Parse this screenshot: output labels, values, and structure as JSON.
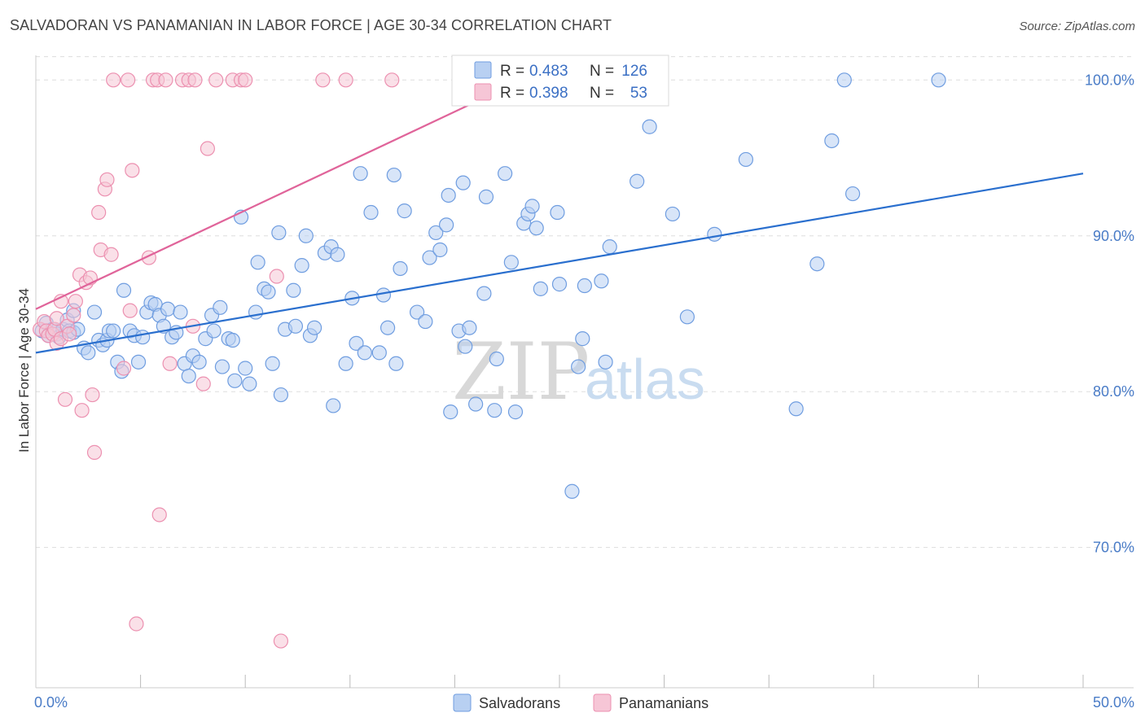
{
  "title": "SALVADORAN VS PANAMANIAN IN LABOR FORCE | AGE 30-34 CORRELATION CHART",
  "source": "Source: ZipAtlas.com",
  "watermark": {
    "zip": "ZIP",
    "atlas": "atlas"
  },
  "colors": {
    "salvadoran_fill": "#b8d0f2",
    "salvadoran_stroke": "#6f9de0",
    "salvadoran_line": "#2a6fce",
    "panamanian_fill": "#f6c6d6",
    "panamanian_stroke": "#ec90b0",
    "panamanian_line": "#e0649a",
    "grid": "#dddddd",
    "tick_text": "#4a7cc7"
  },
  "legend": {
    "rows": [
      {
        "r_label": "R =",
        "r_value": "0.483",
        "n_label": "N =",
        "n_value": "126"
      },
      {
        "r_label": "R =",
        "r_value": "0.398",
        "n_label": "N =",
        "n_value": "53"
      }
    ]
  },
  "bottom_legend": [
    "Salvadorans",
    "Panamanians"
  ],
  "chart_data": {
    "type": "scatter",
    "xlabel": "",
    "ylabel": "In Labor Force | Age 30-34",
    "xlim": [
      0,
      50
    ],
    "ylim": [
      61,
      102
    ],
    "x_tick_labels": [
      "0.0%",
      "50.0%"
    ],
    "y_ticks": [
      70,
      80,
      90,
      100
    ],
    "y_tick_labels": [
      "70.0%",
      "80.0%",
      "90.0%",
      "100.0%"
    ],
    "grid": true,
    "legend_position": "top-center",
    "series": [
      {
        "name": "Salvadorans",
        "r": 0.483,
        "n": 126,
        "trend": {
          "x": [
            0.0,
            50.0
          ],
          "y": [
            82.5,
            94.0
          ]
        },
        "points": [
          [
            0.3,
            83.9
          ],
          [
            0.5,
            84.4
          ],
          [
            0.6,
            83.6
          ],
          [
            0.8,
            84.0
          ],
          [
            1.0,
            83.7
          ],
          [
            1.1,
            83.5
          ],
          [
            1.3,
            84.0
          ],
          [
            1.5,
            84.6
          ],
          [
            1.6,
            83.9
          ],
          [
            1.8,
            83.8
          ],
          [
            1.8,
            85.2
          ],
          [
            2.0,
            84.0
          ],
          [
            2.3,
            82.8
          ],
          [
            2.5,
            82.5
          ],
          [
            2.8,
            85.1
          ],
          [
            3.0,
            83.3
          ],
          [
            3.2,
            83.0
          ],
          [
            3.4,
            83.3
          ],
          [
            3.5,
            83.9
          ],
          [
            3.7,
            83.9
          ],
          [
            3.9,
            81.9
          ],
          [
            4.1,
            81.3
          ],
          [
            4.2,
            86.5
          ],
          [
            4.5,
            83.9
          ],
          [
            4.7,
            83.6
          ],
          [
            4.9,
            81.9
          ],
          [
            5.1,
            83.5
          ],
          [
            5.3,
            85.1
          ],
          [
            5.5,
            85.7
          ],
          [
            5.7,
            85.6
          ],
          [
            5.9,
            84.9
          ],
          [
            6.1,
            84.2
          ],
          [
            6.3,
            85.3
          ],
          [
            6.5,
            83.5
          ],
          [
            6.7,
            83.8
          ],
          [
            6.9,
            85.1
          ],
          [
            7.1,
            81.8
          ],
          [
            7.3,
            81.0
          ],
          [
            7.5,
            82.3
          ],
          [
            7.8,
            81.9
          ],
          [
            8.1,
            83.4
          ],
          [
            8.4,
            84.9
          ],
          [
            8.5,
            83.9
          ],
          [
            8.8,
            85.4
          ],
          [
            8.9,
            81.6
          ],
          [
            9.2,
            83.4
          ],
          [
            9.4,
            83.3
          ],
          [
            9.5,
            80.7
          ],
          [
            9.8,
            91.2
          ],
          [
            10.0,
            81.5
          ],
          [
            10.2,
            80.5
          ],
          [
            10.5,
            85.1
          ],
          [
            10.6,
            88.3
          ],
          [
            10.9,
            86.6
          ],
          [
            11.1,
            86.4
          ],
          [
            11.3,
            81.8
          ],
          [
            11.6,
            90.2
          ],
          [
            11.7,
            79.8
          ],
          [
            11.9,
            84.0
          ],
          [
            12.3,
            86.5
          ],
          [
            12.4,
            84.2
          ],
          [
            12.7,
            88.1
          ],
          [
            12.9,
            90.0
          ],
          [
            13.1,
            83.6
          ],
          [
            13.3,
            84.1
          ],
          [
            13.8,
            88.9
          ],
          [
            14.1,
            89.3
          ],
          [
            14.2,
            79.1
          ],
          [
            14.4,
            88.8
          ],
          [
            14.8,
            81.8
          ],
          [
            15.1,
            86.0
          ],
          [
            15.3,
            83.1
          ],
          [
            15.5,
            94.0
          ],
          [
            15.7,
            82.5
          ],
          [
            16.0,
            91.5
          ],
          [
            16.4,
            82.5
          ],
          [
            16.6,
            86.2
          ],
          [
            16.8,
            84.1
          ],
          [
            17.1,
            93.9
          ],
          [
            17.2,
            81.8
          ],
          [
            17.4,
            87.9
          ],
          [
            17.6,
            91.6
          ],
          [
            18.2,
            85.1
          ],
          [
            18.6,
            84.5
          ],
          [
            18.8,
            88.6
          ],
          [
            19.1,
            90.2
          ],
          [
            19.3,
            89.1
          ],
          [
            19.6,
            90.7
          ],
          [
            19.7,
            92.6
          ],
          [
            19.8,
            78.7
          ],
          [
            20.2,
            83.9
          ],
          [
            20.4,
            93.4
          ],
          [
            20.5,
            82.9
          ],
          [
            20.7,
            84.1
          ],
          [
            21.0,
            79.2
          ],
          [
            21.4,
            86.3
          ],
          [
            21.5,
            92.5
          ],
          [
            21.9,
            78.8
          ],
          [
            22.0,
            82.1
          ],
          [
            22.4,
            94.0
          ],
          [
            22.7,
            88.3
          ],
          [
            22.9,
            78.7
          ],
          [
            23.3,
            90.8
          ],
          [
            23.5,
            91.4
          ],
          [
            23.7,
            91.9
          ],
          [
            23.9,
            90.5
          ],
          [
            24.1,
            86.6
          ],
          [
            24.2,
            100.0
          ],
          [
            24.9,
            91.5
          ],
          [
            25.0,
            86.9
          ],
          [
            25.6,
            73.6
          ],
          [
            25.9,
            81.6
          ],
          [
            26.1,
            83.4
          ],
          [
            26.2,
            86.8
          ],
          [
            27.0,
            87.1
          ],
          [
            27.2,
            81.9
          ],
          [
            27.4,
            89.3
          ],
          [
            28.7,
            93.5
          ],
          [
            29.3,
            97.0
          ],
          [
            30.4,
            91.4
          ],
          [
            31.1,
            84.8
          ],
          [
            32.4,
            90.1
          ],
          [
            33.9,
            94.9
          ],
          [
            36.3,
            78.9
          ],
          [
            37.3,
            88.2
          ],
          [
            38.0,
            96.1
          ],
          [
            38.6,
            100.0
          ],
          [
            39.0,
            92.7
          ],
          [
            43.1,
            100.0
          ]
        ]
      },
      {
        "name": "Panamanians",
        "r": 0.398,
        "n": 53,
        "trend": {
          "x": [
            0.0,
            24.0
          ],
          "y": [
            85.3,
            100.5
          ]
        },
        "points": [
          [
            0.2,
            84.0
          ],
          [
            0.4,
            84.5
          ],
          [
            0.5,
            83.9
          ],
          [
            0.6,
            83.6
          ],
          [
            0.8,
            83.7
          ],
          [
            0.9,
            84.0
          ],
          [
            1.0,
            83.1
          ],
          [
            1.0,
            84.7
          ],
          [
            1.2,
            83.4
          ],
          [
            1.2,
            85.8
          ],
          [
            1.4,
            79.5
          ],
          [
            1.5,
            84.2
          ],
          [
            1.6,
            83.7
          ],
          [
            1.8,
            84.9
          ],
          [
            1.9,
            85.8
          ],
          [
            2.1,
            87.5
          ],
          [
            2.2,
            78.8
          ],
          [
            2.4,
            87.0
          ],
          [
            2.6,
            87.3
          ],
          [
            2.7,
            79.8
          ],
          [
            2.8,
            76.1
          ],
          [
            3.0,
            91.5
          ],
          [
            3.1,
            89.1
          ],
          [
            3.3,
            93.0
          ],
          [
            3.4,
            93.6
          ],
          [
            3.6,
            88.8
          ],
          [
            3.7,
            100.0
          ],
          [
            4.2,
            81.5
          ],
          [
            4.4,
            100.0
          ],
          [
            4.5,
            85.2
          ],
          [
            4.6,
            94.2
          ],
          [
            4.8,
            65.1
          ],
          [
            5.4,
            88.6
          ],
          [
            5.6,
            100.0
          ],
          [
            5.8,
            100.0
          ],
          [
            5.9,
            72.1
          ],
          [
            6.2,
            100.0
          ],
          [
            6.4,
            81.8
          ],
          [
            7.0,
            100.0
          ],
          [
            7.3,
            100.0
          ],
          [
            7.5,
            84.2
          ],
          [
            7.6,
            100.0
          ],
          [
            8.0,
            80.5
          ],
          [
            8.2,
            95.6
          ],
          [
            8.6,
            100.0
          ],
          [
            9.4,
            100.0
          ],
          [
            9.8,
            100.0
          ],
          [
            10.0,
            100.0
          ],
          [
            11.5,
            87.4
          ],
          [
            11.7,
            64.0
          ],
          [
            13.7,
            100.0
          ],
          [
            14.8,
            100.0
          ],
          [
            17.0,
            100.0
          ]
        ]
      }
    ]
  }
}
